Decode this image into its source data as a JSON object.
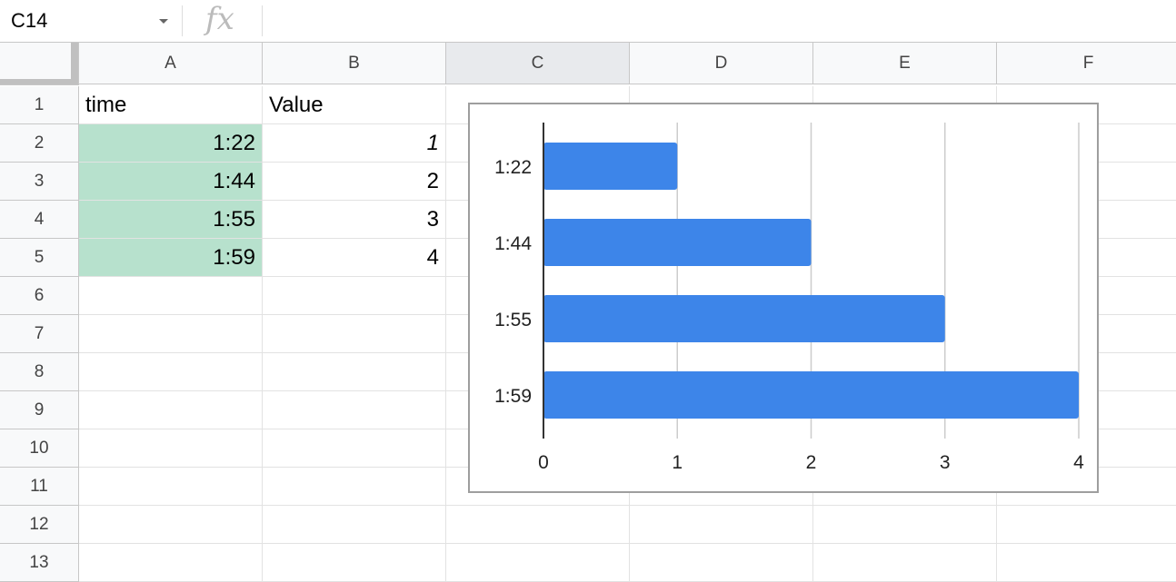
{
  "name_box": {
    "value": "C14"
  },
  "formula_bar": {
    "value": ""
  },
  "columns": [
    "A",
    "B",
    "C",
    "D",
    "E",
    "F"
  ],
  "selected_column": "C",
  "rows": [
    "1",
    "2",
    "3",
    "4",
    "5",
    "6",
    "7",
    "8",
    "9",
    "10",
    "11",
    "12",
    "13"
  ],
  "cells": {
    "A1": "time",
    "B1": "Value",
    "A2": "1:22",
    "B2": "1",
    "A3": "1:44",
    "B3": "2",
    "A4": "1:55",
    "B4": "3",
    "A5": "1:59",
    "B5": "4"
  },
  "chart_data": {
    "type": "bar",
    "orientation": "horizontal",
    "categories": [
      "1:22",
      "1:44",
      "1:55",
      "1:59"
    ],
    "values": [
      1,
      2,
      3,
      4
    ],
    "xticks": [
      "0",
      "1",
      "2",
      "3",
      "4"
    ],
    "xlim": [
      0,
      4
    ],
    "grid": true,
    "bar_color": "#3d85e9",
    "title": "",
    "xlabel": "",
    "ylabel": ""
  }
}
